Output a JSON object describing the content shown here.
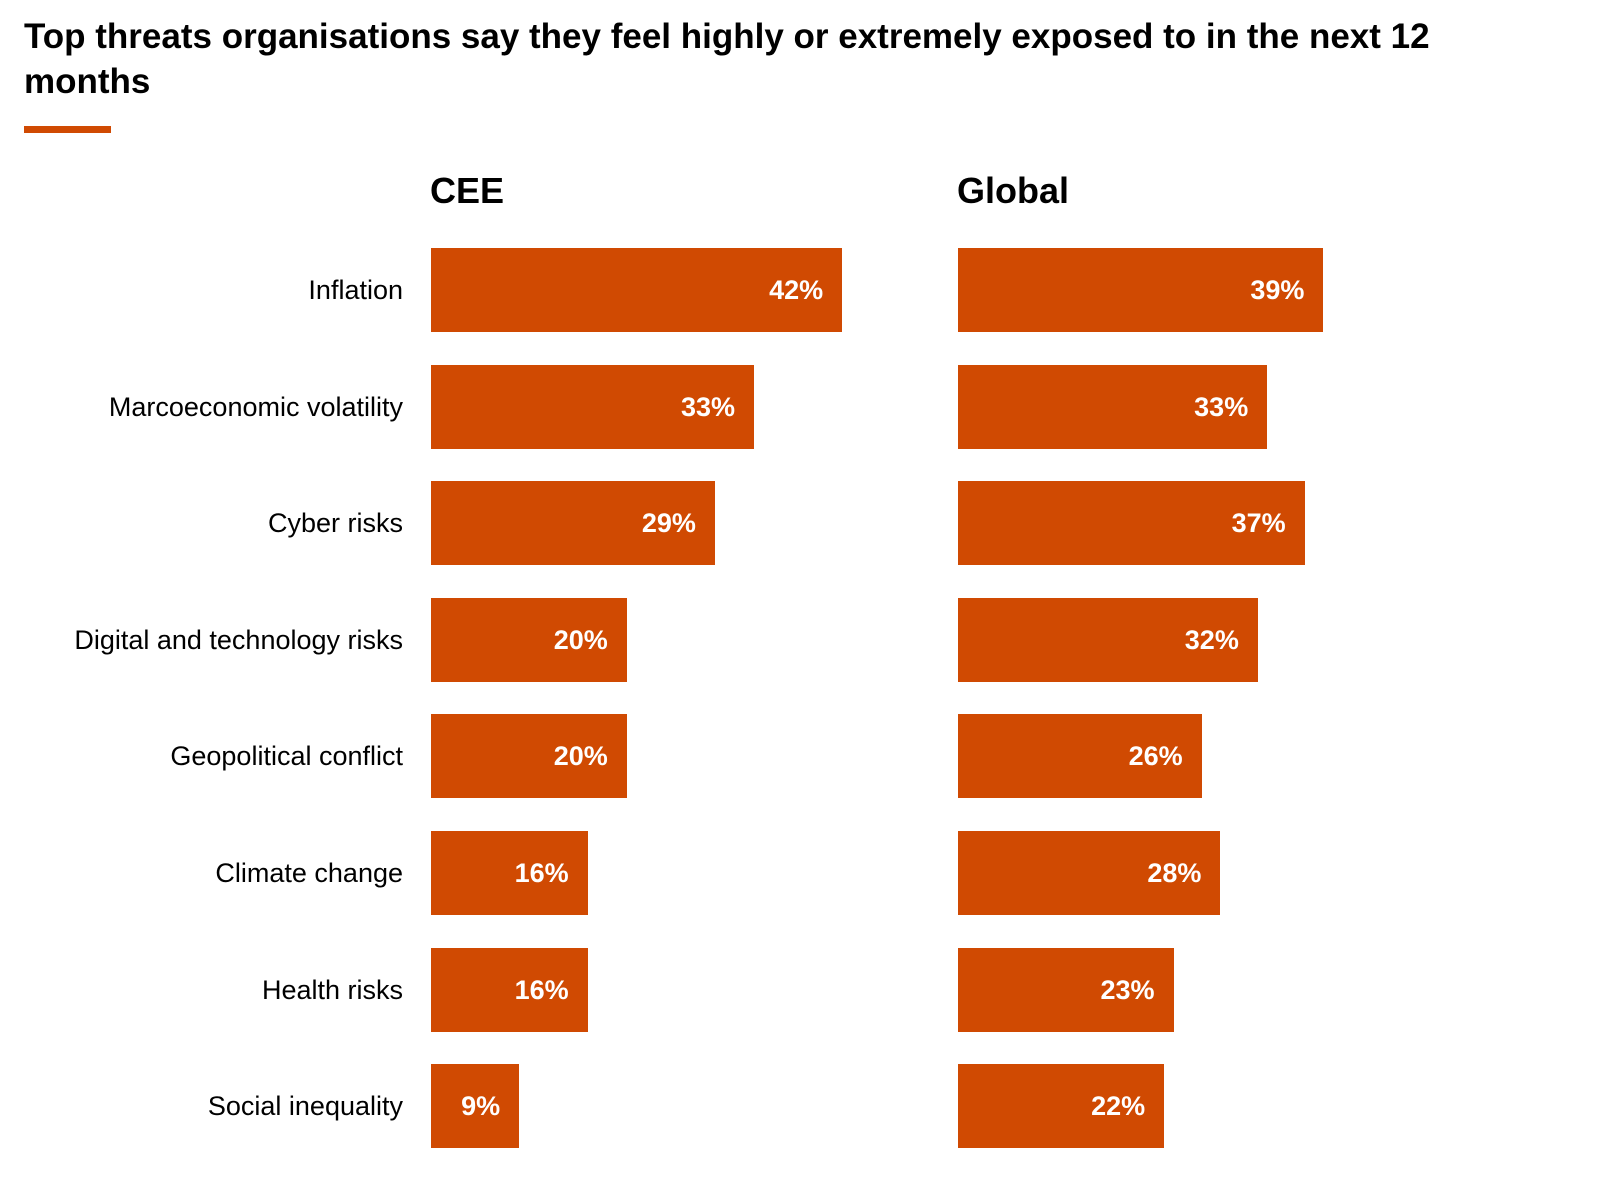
{
  "chart_data": {
    "type": "bar",
    "orientation": "horizontal",
    "title": "Top threats organisations say they feel highly or extremely exposed to in the next 12 months",
    "categories": [
      "Inflation",
      "Marcoeconomic volatility",
      "Cyber risks",
      "Digital and technology risks",
      "Geopolitical conflict",
      "Climate change",
      "Health risks",
      "Social inequality"
    ],
    "series": [
      {
        "name": "CEE",
        "values": [
          42,
          33,
          29,
          20,
          20,
          16,
          16,
          9
        ]
      },
      {
        "name": "Global",
        "values": [
          39,
          33,
          37,
          32,
          26,
          28,
          23,
          22
        ]
      }
    ],
    "value_suffix": "%",
    "grid": false,
    "legend": "none",
    "bar_color": "#d04a02"
  }
}
